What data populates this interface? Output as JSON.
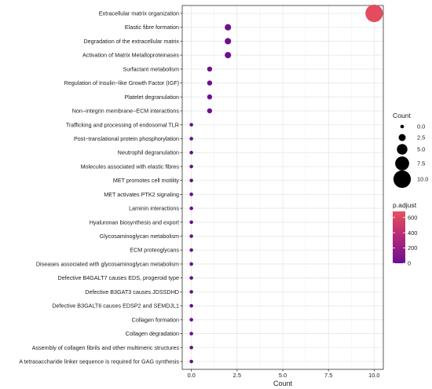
{
  "chart_data": {
    "type": "scatter",
    "xlabel": "Count",
    "ylabel": "",
    "xlim": [
      -0.5,
      10.5
    ],
    "xticks": [
      "0.0",
      "2.5",
      "5.0",
      "7.5",
      "10.0"
    ],
    "xtick_values": [
      0,
      2.5,
      5,
      7.5,
      10
    ],
    "grid": true,
    "categories": [
      "Extracellular matrix organization",
      "Elastic fibre formation",
      "Degradation of the extracellular matrix",
      "Activation of Matrix Metalloproteinases",
      "Surfactant metabolism",
      "Regulation of Insulin−like Growth Factor (IGF)",
      "Platelet degranulation",
      "Non−integrin membrane−ECM interactions",
      "Trafficking and processing of endosomal TLR",
      "Post−translational protein phosphorylation",
      "Neutrophil degranulation",
      "Molecules associated with elastic fibres",
      "MET promotes cell motility",
      "MET activates PTK2 signaling",
      "Laminin interactions",
      "Hyaluronan biosynthesis and export",
      "Glycosaminoglycan metabolism",
      "ECM proteoglycans",
      "Diseases associated with glycosaminoglycan metabolism",
      "Defective B4GALT7 causes EDS, progeroid type",
      "Defective B3GAT3 causes JDSSDHD",
      "Defective B3GALT6 causes EDSP2 and SEMDJL1",
      "Collagen formation",
      "Collagen degradation",
      "Assembly of collagen fibrils and other multimeric structures",
      "A tetrasaccharide linker sequence is required for GAG synthesis"
    ],
    "counts": [
      10,
      2,
      2,
      2,
      1,
      1,
      1,
      1,
      0,
      0,
      0,
      0,
      0,
      0,
      0,
      0,
      0,
      0,
      0,
      0,
      0,
      0,
      0,
      0,
      0,
      0
    ],
    "p_adjust": [
      650,
      15,
      15,
      15,
      8,
      8,
      8,
      8,
      1,
      1,
      1,
      1,
      1,
      1,
      1,
      1,
      1,
      1,
      1,
      1,
      1,
      1,
      1,
      1,
      1,
      1
    ],
    "legend": {
      "size_title": "Count",
      "size_labels": [
        "0.0",
        "2.5",
        "5.0",
        "7.5",
        "10.0"
      ],
      "size_values": [
        0,
        2.5,
        5,
        7.5,
        10
      ],
      "color_title": "p.adjust",
      "color_labels": [
        "600",
        "400",
        "200",
        "0"
      ],
      "color_values": [
        600,
        400,
        200,
        0
      ],
      "color_range": [
        0,
        680
      ],
      "placement": "right"
    },
    "colors": {
      "low": "#6b0f8f",
      "mid": "#b2287a",
      "high": "#e8505b",
      "grid": "#e6e6e6",
      "size_key": "#000000"
    }
  }
}
